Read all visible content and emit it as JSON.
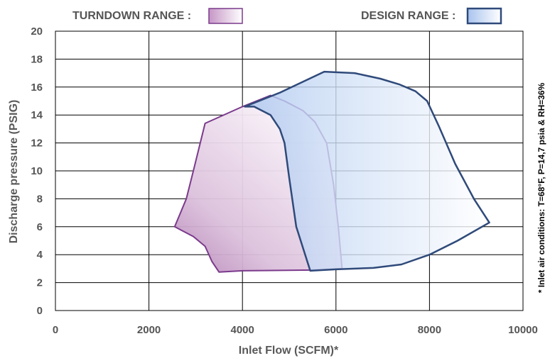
{
  "chart_data": {
    "type": "area",
    "xlabel": "Inlet Flow (SCFM)*",
    "ylabel": "Discharge pressure (PSIG)",
    "xlim": [
      0,
      10000
    ],
    "ylim": [
      0,
      20
    ],
    "xticks": [
      0,
      2000,
      4000,
      6000,
      8000,
      10000
    ],
    "yticks": [
      0,
      2,
      4,
      6,
      8,
      10,
      12,
      14,
      16,
      18,
      20
    ],
    "x_tick_labels": [
      "0",
      "2000",
      "4000",
      "6000",
      "8000",
      "10000"
    ],
    "y_tick_labels": [
      "0",
      "2",
      "4",
      "6",
      "8",
      "10",
      "12",
      "14",
      "16",
      "18",
      "20"
    ],
    "grid": true,
    "legend_position": "top",
    "note": "* Inlet  air  conditions:  T=68°F, P=14,7 psia & RH=36%",
    "series": [
      {
        "name": "TURNDOWN RANGE :",
        "color": "#7b3a8c",
        "fill": "#d9b6da",
        "points": [
          [
            2550,
            6.0
          ],
          [
            2800,
            8.0
          ],
          [
            2950,
            10.0
          ],
          [
            3200,
            13.4
          ],
          [
            4000,
            14.6
          ],
          [
            4600,
            15.4
          ],
          [
            4900,
            15.0
          ],
          [
            5300,
            14.3
          ],
          [
            5550,
            13.5
          ],
          [
            5800,
            12.0
          ],
          [
            5950,
            9.0
          ],
          [
            6050,
            6.0
          ],
          [
            6130,
            3.0
          ],
          [
            5500,
            2.9
          ],
          [
            4000,
            2.85
          ],
          [
            3500,
            2.75
          ],
          [
            3350,
            3.5
          ],
          [
            3200,
            4.6
          ],
          [
            2950,
            5.3
          ],
          [
            2550,
            6.0
          ]
        ]
      },
      {
        "name": "DESIGN RANGE :",
        "color": "#2f4a7a",
        "fill": "#9dbde8",
        "points": [
          [
            4050,
            14.6
          ],
          [
            4800,
            15.6
          ],
          [
            5750,
            17.1
          ],
          [
            6400,
            17.0
          ],
          [
            6950,
            16.6
          ],
          [
            7350,
            16.2
          ],
          [
            7700,
            15.7
          ],
          [
            7950,
            15.0
          ],
          [
            8200,
            13.2
          ],
          [
            8550,
            10.5
          ],
          [
            8950,
            8.0
          ],
          [
            9280,
            6.3
          ],
          [
            8600,
            5.0
          ],
          [
            8000,
            4.0
          ],
          [
            7400,
            3.3
          ],
          [
            6800,
            3.05
          ],
          [
            6000,
            2.95
          ],
          [
            5450,
            2.85
          ],
          [
            5150,
            6.0
          ],
          [
            5000,
            9.5
          ],
          [
            4900,
            12.0
          ],
          [
            4800,
            13.0
          ],
          [
            4600,
            14.0
          ],
          [
            4250,
            14.6
          ],
          [
            4050,
            14.6
          ]
        ]
      }
    ]
  }
}
